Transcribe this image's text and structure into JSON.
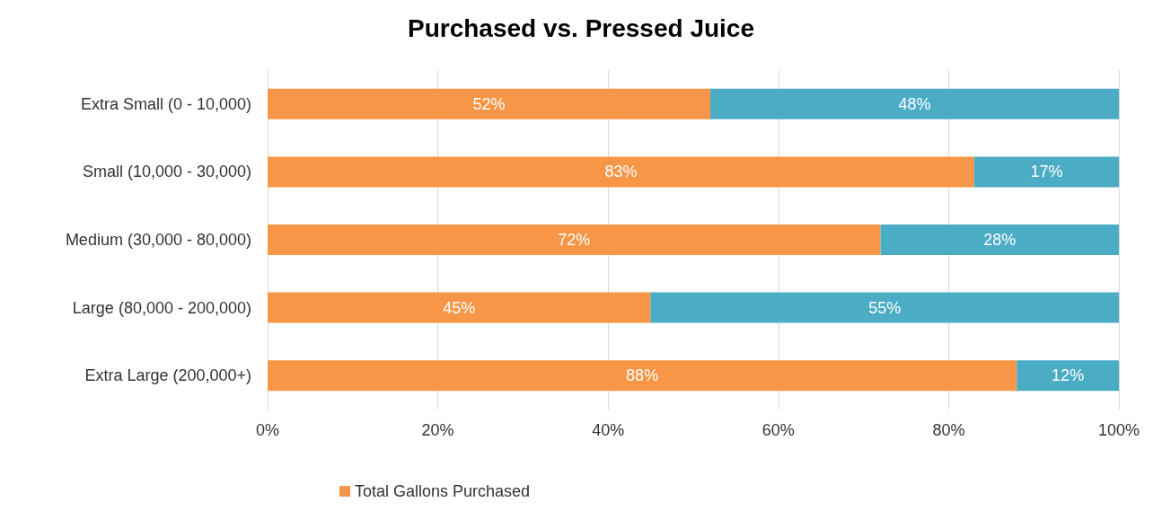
{
  "chart_data": {
    "type": "bar",
    "orientation": "horizontal",
    "stacked": true,
    "title": "Purchased vs. Pressed Juice",
    "categories": [
      "Extra Small (0 - 10,000)",
      "Small (10,000 - 30,000)",
      "Medium (30,000 - 80,000)",
      "Large (80,000 - 200,000)",
      "Extra Large (200,000+)"
    ],
    "series": [
      {
        "name": "Total Gallons Purchased",
        "color": "#f79646",
        "values": [
          52,
          83,
          72,
          45,
          88
        ],
        "value_labels": [
          "52%",
          "83%",
          "72%",
          "45%",
          "88%"
        ]
      },
      {
        "color": "#4bacc6",
        "values": [
          48,
          17,
          28,
          55,
          12
        ],
        "value_labels": [
          "48%",
          "17%",
          "28%",
          "55%",
          "12%"
        ]
      }
    ],
    "xlim": [
      0,
      100
    ],
    "xticks": [
      {
        "value": 0,
        "label": "0%"
      },
      {
        "value": 20,
        "label": "20%"
      },
      {
        "value": 40,
        "label": "40%"
      },
      {
        "value": 60,
        "label": "60%"
      },
      {
        "value": 80,
        "label": "80%"
      },
      {
        "value": 100,
        "label": "100%"
      }
    ],
    "grid": "x",
    "legend": "bottom left"
  }
}
